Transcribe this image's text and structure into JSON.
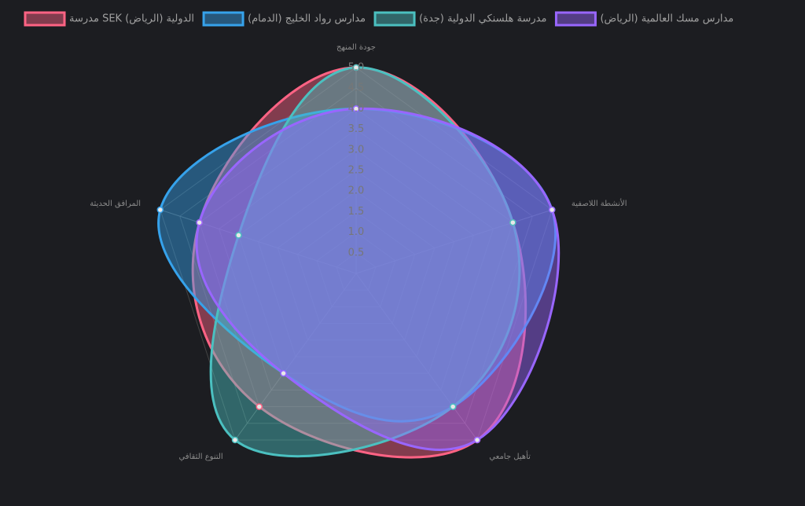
{
  "chart_data": {
    "type": "radar",
    "categories": [
      "جودة المنهج",
      "الأنشطة اللاصفية",
      "تأهيل جامعي",
      "التنوع الثقافي",
      "المرافق الحديثة"
    ],
    "series": [
      {
        "name": "مدرسة SEK الدولية (الرياض)",
        "color": "#ff6384",
        "values": [
          5,
          4,
          5,
          4,
          4
        ]
      },
      {
        "name": "مدارس رواد الخليج (الدمام)",
        "color": "#36a2eb",
        "values": [
          4,
          5,
          4,
          3,
          5
        ]
      },
      {
        "name": "مدرسة هلسنكي الدولية (جدة)",
        "color": "#4bc0c0",
        "values": [
          5,
          4,
          4,
          5,
          3
        ]
      },
      {
        "name": "مدارس مسك العالمية (الرياض)",
        "color": "#9966ff",
        "values": [
          4,
          5,
          5,
          3,
          4
        ]
      }
    ],
    "rlim": [
      0,
      5
    ],
    "rticks": [
      0.5,
      {
        "value": 1,
        "label": "1.0"
      },
      1.5,
      {
        "value": 2,
        "label": "2.0"
      },
      2.5,
      {
        "value": 3,
        "label": "3.0"
      },
      3.5,
      {
        "value": 4,
        "label": "4.0"
      },
      4.5,
      {
        "value": 5,
        "label": "5.0"
      }
    ],
    "grid": true,
    "legend": "top"
  }
}
